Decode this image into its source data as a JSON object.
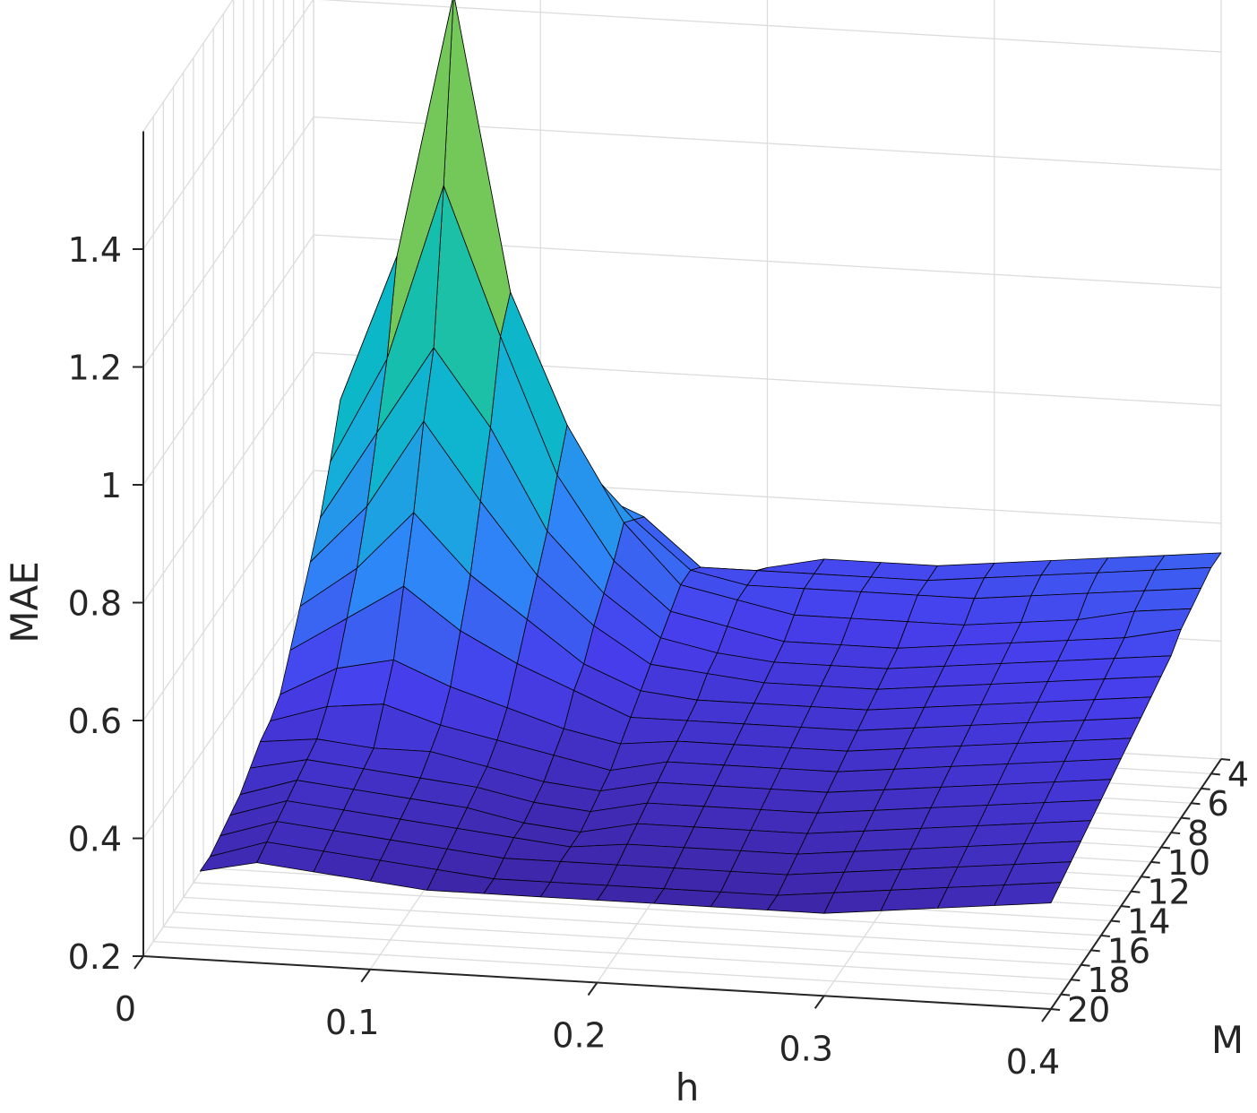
{
  "chart_data": {
    "type": "surface3d",
    "title": "",
    "xlabel": "h",
    "ylabel": "M",
    "zlabel": "MAE",
    "x_ticks": [
      "0",
      "0.1",
      "0.2",
      "0.3",
      "0.4"
    ],
    "y_ticks": [
      "4",
      "6",
      "8",
      "10",
      "12",
      "14",
      "16",
      "18",
      "20"
    ],
    "z_ticks": [
      "0.2",
      "0.4",
      "0.6",
      "0.8",
      "1",
      "1.2",
      "1.4"
    ],
    "xlim": [
      0,
      0.4
    ],
    "ylim": [
      3,
      20
    ],
    "zlim": [
      0.2,
      1.6
    ],
    "grid": true,
    "colormap": "parula",
    "h": [
      0.025,
      0.05,
      0.075,
      0.1,
      0.125,
      0.15,
      0.175,
      0.2,
      0.225,
      0.25,
      0.275,
      0.3,
      0.325,
      0.35,
      0.375,
      0.4
    ],
    "M": [
      3,
      4,
      5,
      6,
      7,
      8,
      9,
      10,
      11,
      12,
      13,
      14,
      15,
      16,
      17,
      18,
      19,
      20
    ],
    "MAE": [
      [
        0.55,
        0.5,
        0.5,
        0.48,
        0.5,
        0.52,
        0.45,
        0.48,
        0.5,
        0.5,
        0.5,
        0.51,
        0.52,
        0.53,
        0.54,
        0.55
      ],
      [
        0.6,
        0.65,
        0.8,
        0.7,
        0.62,
        0.58,
        0.5,
        0.5,
        0.5,
        0.5,
        0.5,
        0.51,
        0.52,
        0.53,
        0.54,
        0.55
      ],
      [
        0.7,
        0.85,
        1.1,
        0.9,
        0.7,
        0.6,
        0.52,
        0.5,
        0.5,
        0.5,
        0.5,
        0.5,
        0.51,
        0.52,
        0.53,
        0.54
      ],
      [
        0.8,
        1.05,
        1.5,
        1.0,
        0.78,
        0.62,
        0.52,
        0.5,
        0.48,
        0.48,
        0.48,
        0.48,
        0.49,
        0.5,
        0.52,
        0.53
      ],
      [
        0.72,
        0.9,
        1.2,
        0.95,
        0.72,
        0.58,
        0.5,
        0.48,
        0.46,
        0.46,
        0.46,
        0.47,
        0.48,
        0.49,
        0.5,
        0.52
      ],
      [
        0.65,
        0.8,
        0.95,
        0.82,
        0.65,
        0.55,
        0.48,
        0.46,
        0.45,
        0.45,
        0.45,
        0.46,
        0.47,
        0.48,
        0.49,
        0.5
      ],
      [
        0.6,
        0.7,
        0.85,
        0.72,
        0.6,
        0.52,
        0.46,
        0.45,
        0.44,
        0.44,
        0.44,
        0.45,
        0.46,
        0.47,
        0.48,
        0.49
      ],
      [
        0.55,
        0.62,
        0.72,
        0.62,
        0.55,
        0.48,
        0.44,
        0.43,
        0.43,
        0.43,
        0.43,
        0.44,
        0.45,
        0.46,
        0.47,
        0.48
      ],
      [
        0.5,
        0.56,
        0.62,
        0.55,
        0.5,
        0.46,
        0.42,
        0.42,
        0.42,
        0.42,
        0.42,
        0.43,
        0.44,
        0.45,
        0.46,
        0.47
      ],
      [
        0.45,
        0.5,
        0.52,
        0.48,
        0.45,
        0.42,
        0.4,
        0.41,
        0.41,
        0.41,
        0.41,
        0.42,
        0.43,
        0.44,
        0.45,
        0.46
      ],
      [
        0.43,
        0.46,
        0.47,
        0.44,
        0.42,
        0.4,
        0.38,
        0.4,
        0.4,
        0.4,
        0.4,
        0.41,
        0.42,
        0.43,
        0.44,
        0.45
      ],
      [
        0.42,
        0.43,
        0.42,
        0.42,
        0.4,
        0.38,
        0.37,
        0.39,
        0.39,
        0.39,
        0.39,
        0.4,
        0.41,
        0.42,
        0.43,
        0.44
      ],
      [
        0.4,
        0.42,
        0.41,
        0.4,
        0.39,
        0.37,
        0.36,
        0.38,
        0.38,
        0.38,
        0.38,
        0.39,
        0.4,
        0.41,
        0.42,
        0.43
      ],
      [
        0.38,
        0.41,
        0.4,
        0.39,
        0.38,
        0.36,
        0.35,
        0.37,
        0.37,
        0.37,
        0.37,
        0.38,
        0.39,
        0.4,
        0.41,
        0.42
      ],
      [
        0.37,
        0.4,
        0.39,
        0.38,
        0.37,
        0.36,
        0.35,
        0.36,
        0.36,
        0.36,
        0.36,
        0.37,
        0.38,
        0.39,
        0.4,
        0.41
      ],
      [
        0.36,
        0.39,
        0.38,
        0.37,
        0.36,
        0.35,
        0.35,
        0.35,
        0.35,
        0.35,
        0.35,
        0.36,
        0.37,
        0.38,
        0.39,
        0.4
      ],
      [
        0.35,
        0.38,
        0.37,
        0.36,
        0.35,
        0.34,
        0.34,
        0.34,
        0.34,
        0.34,
        0.34,
        0.35,
        0.36,
        0.37,
        0.38,
        0.39
      ],
      [
        0.35,
        0.37,
        0.36,
        0.35,
        0.34,
        0.34,
        0.34,
        0.34,
        0.34,
        0.34,
        0.34,
        0.34,
        0.35,
        0.36,
        0.37,
        0.38
      ]
    ]
  }
}
